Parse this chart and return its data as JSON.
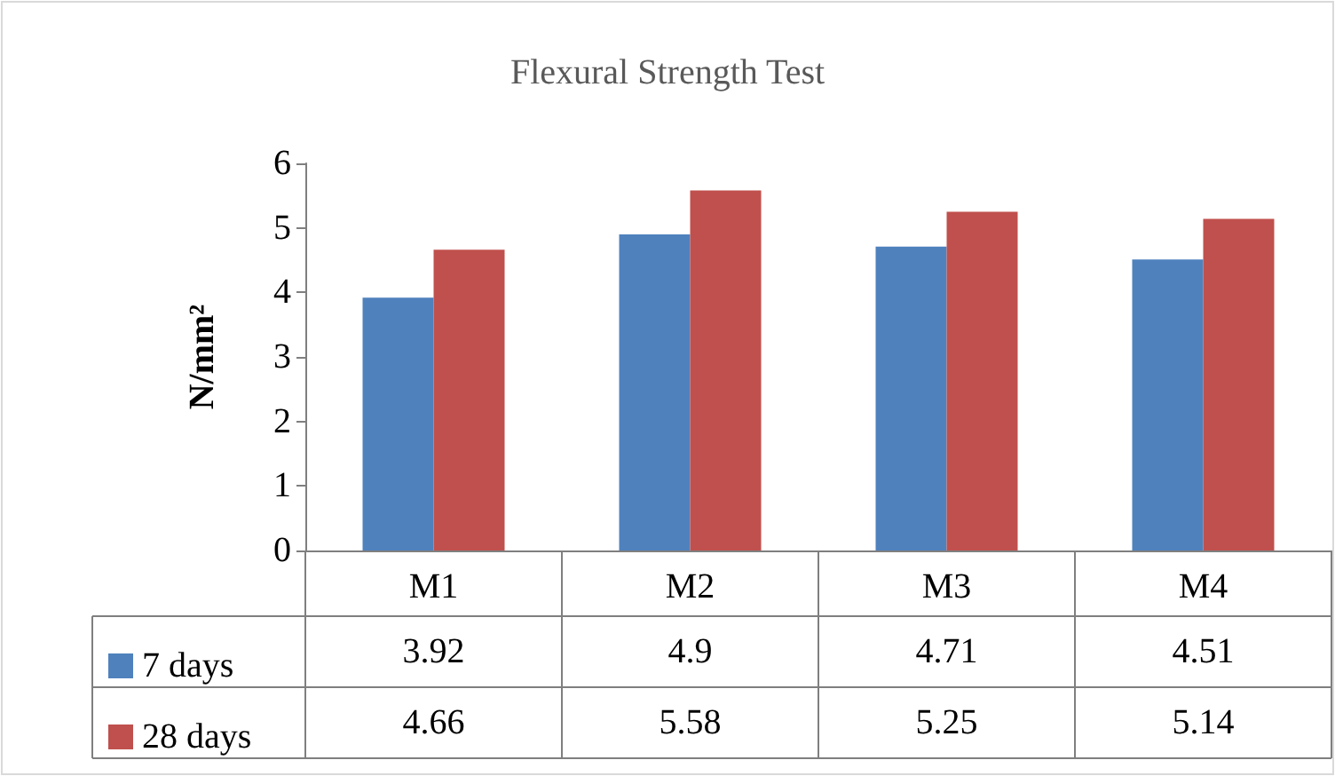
{
  "chart_data": {
    "type": "bar",
    "title": "Flexural Strength Test",
    "ylabel": "N/mm²",
    "categories": [
      "M1",
      "M2",
      "M3",
      "M4"
    ],
    "series": [
      {
        "name": "7 days",
        "color": "#4f81bd",
        "values": [
          3.92,
          4.9,
          4.71,
          4.51
        ]
      },
      {
        "name": "28 days",
        "color": "#c0504d",
        "values": [
          4.66,
          5.58,
          5.25,
          5.14
        ]
      }
    ],
    "ylim": [
      0,
      6
    ],
    "yticks": [
      0,
      1,
      2,
      3,
      4,
      5,
      6
    ],
    "grid": false,
    "legend": "bottom",
    "data_labels": true
  }
}
